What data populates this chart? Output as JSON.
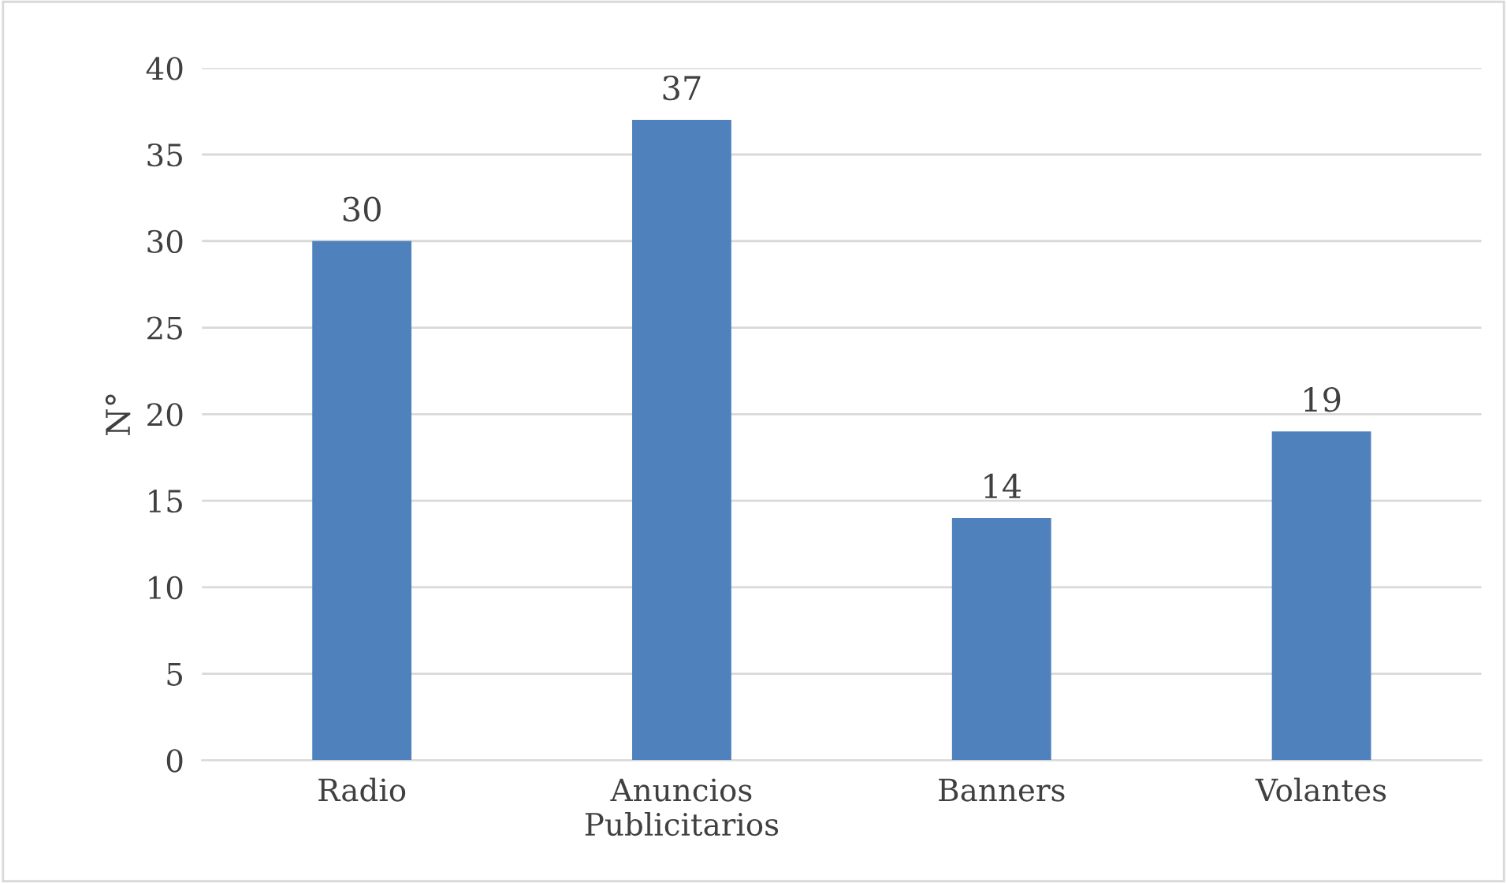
{
  "chart_data": {
    "type": "bar",
    "ylabel": "N°",
    "categories": [
      "Radio",
      "Anuncios Publicitarios",
      "Banners",
      "Volantes"
    ],
    "values": [
      30,
      37,
      14,
      19
    ],
    "color": "#4f81bd",
    "ylim": [
      0,
      40
    ],
    "yticks": [
      0,
      5,
      10,
      15,
      20,
      25,
      30,
      35,
      40
    ],
    "grid": "y",
    "data_labels": true
  }
}
